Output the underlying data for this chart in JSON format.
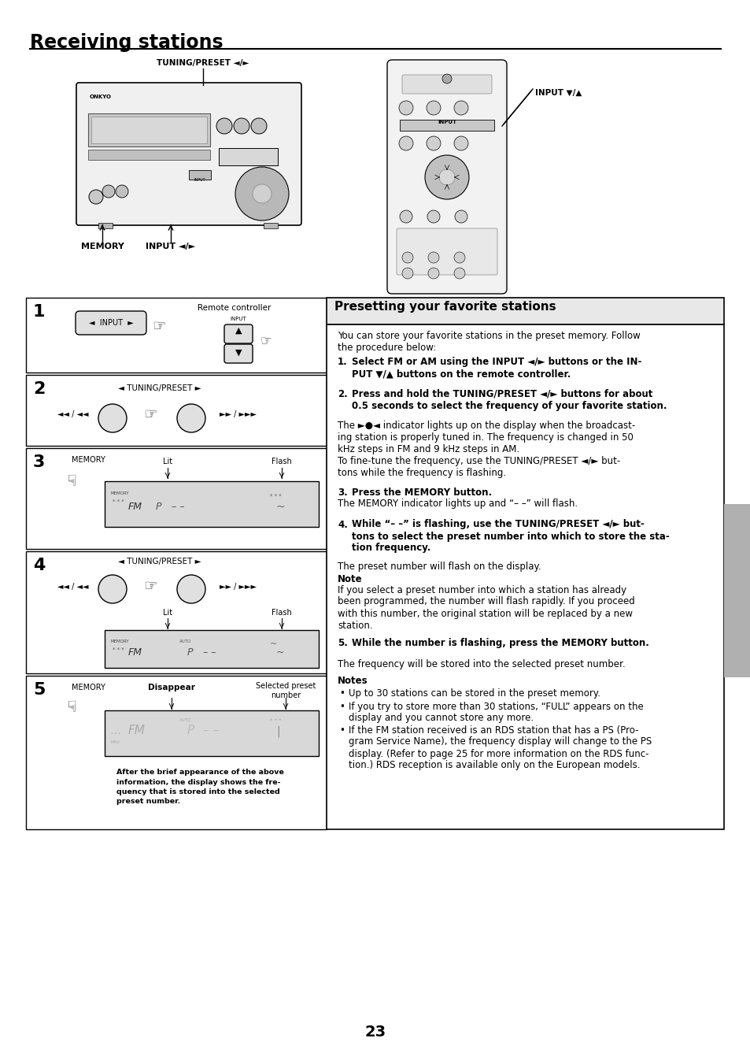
{
  "page_title": "Receiving stations",
  "page_number": "23",
  "bg": "#ffffff",
  "section_header": "Presetting your favorite stations",
  "intro_text": "You can store your favorite stations in the preset memory. Follow\nthe procedure below:",
  "step1_bold": "Select FM or AM using the INPUT ◄/► buttons or the IN-\nPUT ▼/▲ buttons on the remote controller.",
  "step2_bold": "Press and hold the TUNING/PRESET ◄/► buttons for about\n0.5 seconds to select the frequency of your favorite station.",
  "step2_normal": "The ►●◄ indicator lights up on the display when the broadcast-\ning station is properly tuned in. The frequency is changed in 50\nkHz steps in FM and 9 kHz steps in AM.\nTo fine-tune the frequency, use the TUNING/PRESET ◄/► but-\ntons while the frequency is flashing.",
  "step3_bold": "Press the MEMORY button.",
  "step3_normal": "The MEMORY indicator lights up and “– –” will flash.",
  "step4_bold": "While “– –” is flashing, use the TUNING/PRESET ◄/► but-\ntons to select the preset number into which to store the sta-\ntion frequency.",
  "step4_normal": "The preset number will flash on the display.",
  "note_title": "Note",
  "note_text": "If you select a preset number into which a station has already\nbeen programmed, the number will flash rapidly. If you proceed\nwith this number, the original station will be replaced by a new\nstation.",
  "step5_bold": "While the number is flashing, press the MEMORY button.",
  "step5_normal": "The frequency will be stored into the selected preset number.",
  "notes_title": "Notes",
  "note1": "Up to 30 stations can be stored in the preset memory.",
  "note2": "If you try to store more than 30 stations, “FULL” appears on the\ndisplay and you cannot store any more.",
  "note3": "If the FM station received is an RDS station that has a PS (Pro-\ngram Service Name), the frequency display will change to the PS\ndisplay. (Refer to page 25 for more information on the RDS func-\ntion.) RDS reception is available only on the European models.",
  "footer_note": "After the brief appearance of the above\ninformation, the display shows the fre-\nquency that is stored into the selected\npreset number.",
  "label_tuning_preset": "TUNING/PRESET ◄/►",
  "label_memory": "MEMORY",
  "label_input_lr": "INPUT ◄/►",
  "label_input_ud": "INPUT ▼/▲",
  "label_remote_controller": "Remote controller",
  "gray_sidebar_color": "#b0b0b0"
}
